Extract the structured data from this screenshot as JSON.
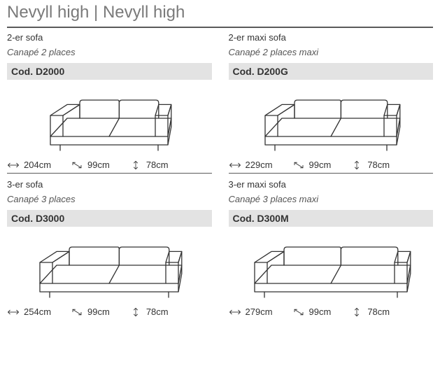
{
  "title": "Nevyll high | Nevyll high",
  "icon_stroke": "#333333",
  "products": [
    {
      "name_de": "2-er sofa",
      "name_fr": "Canapé 2 places",
      "code": "Cod. D2000",
      "width": "204cm",
      "depth": "99cm",
      "height": "78cm",
      "sofa_svg_width": 180
    },
    {
      "name_de": "2-er maxi sofa",
      "name_fr": "Canapé 2 places maxi",
      "code": "Cod. D200G",
      "width": "229cm",
      "depth": "99cm",
      "height": "78cm",
      "sofa_svg_width": 200
    },
    {
      "name_de": "3-er sofa",
      "name_fr": "Canapé 3 places",
      "code": "Cod. D3000",
      "width": "254cm",
      "depth": "99cm",
      "height": "78cm",
      "sofa_svg_width": 210
    },
    {
      "name_de": "3-er maxi sofa",
      "name_fr": "Canapé 3 places maxi",
      "code": "Cod. D300M",
      "width": "279cm",
      "depth": "99cm",
      "height": "78cm",
      "sofa_svg_width": 230
    }
  ]
}
